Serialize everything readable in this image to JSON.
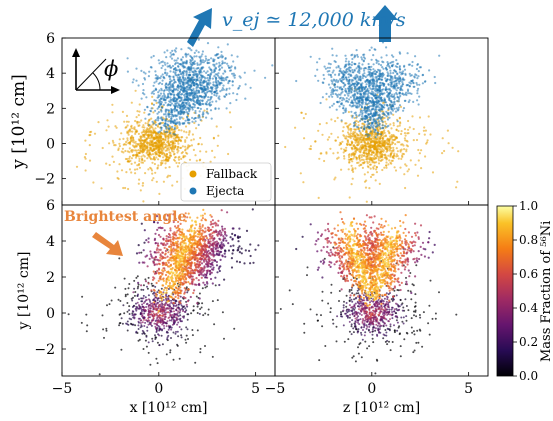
{
  "figure": {
    "velocity_label": "v_ej ≃ 12,000 km/s",
    "velocity_color": "#1f77b4",
    "annotation_text": "Brightest angle",
    "annotation_color": "#e8853c",
    "angle_symbol": "ϕ",
    "colorbar": {
      "label": "Mass Fraction of ⁵⁶Ni",
      "ticks": [
        "0.0",
        "0.2",
        "0.4",
        "0.6",
        "0.8",
        "1.0"
      ],
      "range": [
        0,
        1
      ],
      "colormap": "inferno-like"
    }
  },
  "chart_data": [
    {
      "type": "scatter",
      "panel": "top-left",
      "xlim": [
        -5,
        6
      ],
      "ylim": [
        -3.5,
        6
      ],
      "ylabel": "y [10¹² cm]",
      "yticks": [
        -2,
        0,
        2,
        4,
        6
      ],
      "legend": {
        "placement": "bottom-right",
        "entries": [
          "Fallback",
          "Ejecta"
        ]
      },
      "series": [
        {
          "name": "Fallback",
          "color": "#e69f00",
          "center": [
            -0.2,
            0
          ],
          "spread": [
            1.3,
            1.1
          ]
        },
        {
          "name": "Ejecta",
          "color": "#1f77b4",
          "lobe": "tilted",
          "center": [
            1.0,
            3.2
          ],
          "spread": [
            1.6,
            1.7
          ]
        }
      ]
    },
    {
      "type": "scatter",
      "panel": "top-right",
      "xlim": [
        -5,
        6
      ],
      "ylim": [
        -3.5,
        6
      ],
      "series": [
        {
          "name": "Fallback",
          "color": "#e69f00",
          "center": [
            0,
            0
          ],
          "spread": [
            1.3,
            1.1
          ]
        },
        {
          "name": "Ejecta",
          "color": "#1f77b4",
          "lobe": "heart",
          "center": [
            0,
            3.3
          ],
          "spread": [
            1.8,
            1.6
          ]
        }
      ]
    },
    {
      "type": "scatter",
      "panel": "bottom-left",
      "xlim": [
        -5,
        6
      ],
      "ylim": [
        -3.5,
        6
      ],
      "xlabel": "x [10¹² cm]",
      "ylabel": "y [10¹² cm]",
      "xticks": [
        -5,
        0,
        5
      ],
      "yticks": [
        -2,
        0,
        2,
        4,
        6
      ],
      "colored_by": "Mass Fraction of ⁵⁶Ni",
      "lobe": "tilted"
    },
    {
      "type": "scatter",
      "panel": "bottom-right",
      "xlim": [
        -5,
        6
      ],
      "ylim": [
        -3.5,
        6
      ],
      "xlabel": "z [10¹² cm]",
      "xticks": [
        -5,
        0,
        5
      ],
      "colored_by": "Mass Fraction of ⁵⁶Ni",
      "lobe": "heart"
    }
  ]
}
